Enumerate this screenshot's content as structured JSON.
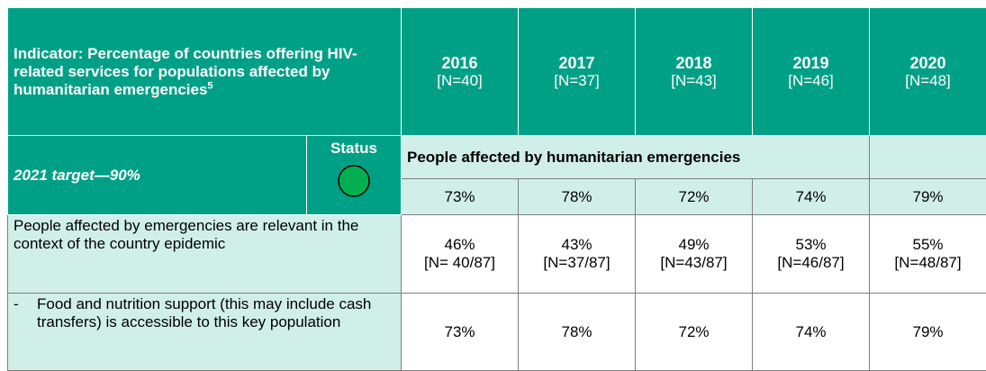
{
  "header": {
    "indicator": "Indicator: Percentage of countries offering HIV-related services for populations affected by humanitarian emergencies",
    "footnote": "5",
    "years": [
      {
        "year": "2016",
        "n": "[N=40]"
      },
      {
        "year": "2017",
        "n": "[N=37]"
      },
      {
        "year": "2018",
        "n": "[N=43]"
      },
      {
        "year": "2019",
        "n": "[N=46]"
      },
      {
        "year": "2020",
        "n": "[N=48]"
      }
    ]
  },
  "target": {
    "label": "2021 target—90%",
    "status_label": "Status",
    "section": "People affected by humanitarian emergencies",
    "values": [
      "73%",
      "78%",
      "72%",
      "74%",
      "79%"
    ]
  },
  "rows": [
    {
      "bullet": null,
      "label": "People affected by emergencies are relevant in the context of the country epidemic",
      "values": [
        {
          "value": "46%",
          "n": "[N= 40/87]"
        },
        {
          "value": "43%",
          "n": "[N=37/87]"
        },
        {
          "value": "49%",
          "n": "[N=43/87]"
        },
        {
          "value": "53%",
          "n": "[N=46/87]"
        },
        {
          "value": "55%",
          "n": "[N=48/87]"
        }
      ]
    },
    {
      "bullet": "-",
      "label": "Food and nutrition support (this may include cash transfers) is accessible to this key population",
      "values": [
        {
          "value": "73%",
          "n": null
        },
        {
          "value": "78%",
          "n": null
        },
        {
          "value": "72%",
          "n": null
        },
        {
          "value": "74%",
          "n": null
        },
        {
          "value": "79%",
          "n": null
        }
      ]
    }
  ]
}
